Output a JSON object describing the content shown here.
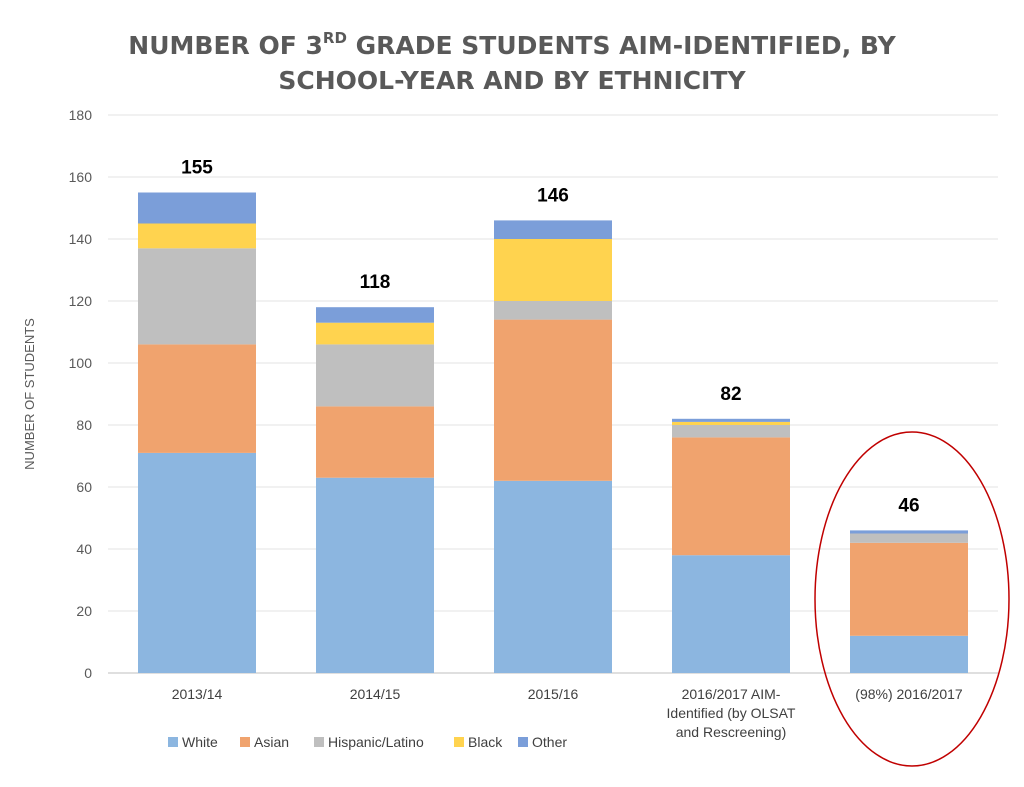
{
  "chart_data": {
    "type": "bar",
    "stacked": true,
    "title_line1_pre": "NUMBER OF 3",
    "title_sup": "RD",
    "title_line1_post": " GRADE STUDENTS AIM-IDENTIFIED, BY",
    "title_line2": "SCHOOL-YEAR AND BY ETHNICITY",
    "xlabel": "",
    "ylabel": "NUMBER OF STUDENTS",
    "ylim": [
      0,
      180
    ],
    "yticks": [
      "0",
      "20",
      "40",
      "60",
      "80",
      "100",
      "120",
      "140",
      "160",
      "180"
    ],
    "grid": true,
    "legend_position": "bottom-left",
    "categories": [
      [
        "2013/14"
      ],
      [
        "2014/15"
      ],
      [
        "2015/16"
      ],
      [
        "2016/2017 AIM-",
        "Identified (by OLSAT",
        "and Rescreening)"
      ],
      [
        "(98%) 2016/2017"
      ]
    ],
    "totals": [
      "155",
      "118",
      "146",
      "82",
      "46"
    ],
    "series": [
      {
        "name": "White",
        "color": "#8cb6e0",
        "values": [
          71,
          63,
          62,
          38,
          12
        ]
      },
      {
        "name": "Asian",
        "color": "#f0a36e",
        "values": [
          35,
          23,
          52,
          38,
          30
        ]
      },
      {
        "name": "Hispanic/Latino",
        "color": "#bfbfbf",
        "values": [
          31,
          20,
          6,
          4,
          3
        ]
      },
      {
        "name": "Black",
        "color": "#ffd34f",
        "values": [
          8,
          7,
          20,
          1,
          0
        ]
      },
      {
        "name": "Other",
        "color": "#7b9ed9",
        "values": [
          10,
          5,
          6,
          1,
          1
        ]
      }
    ],
    "highlight": {
      "category_index": 4,
      "color": "#c00000"
    }
  }
}
